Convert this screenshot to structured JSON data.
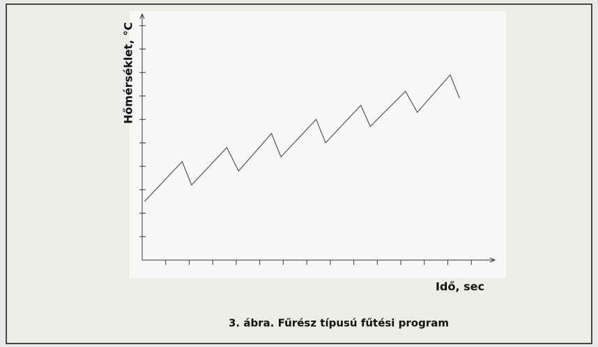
{
  "chart_data": {
    "type": "line",
    "caption": "3. ábra. Fűrész típusú fűtési program",
    "x_label": "Idő, sec",
    "y_label": "Hőmérséklet, °C",
    "x": [
      0.1,
      1.7,
      2.1,
      3.6,
      4.1,
      5.5,
      5.9,
      7.4,
      7.8,
      9.3,
      9.7,
      11.2,
      11.7,
      13.1,
      13.5
    ],
    "series": [
      {
        "color": "#555555",
        "values": [
          2.5,
          4.2,
          3.2,
          4.8,
          3.8,
          5.4,
          4.4,
          6.0,
          5.0,
          6.6,
          5.7,
          7.2,
          6.3,
          7.9,
          6.9
        ]
      }
    ],
    "xlim": [
      0,
      15
    ],
    "ylim": [
      0,
      10.5
    ],
    "xticks": [
      1,
      2,
      3,
      4,
      5,
      6,
      7,
      8,
      9,
      10,
      11,
      12,
      13,
      14
    ],
    "yticks": [
      1,
      2,
      3,
      4,
      5,
      6,
      7,
      8,
      9,
      10
    ]
  }
}
